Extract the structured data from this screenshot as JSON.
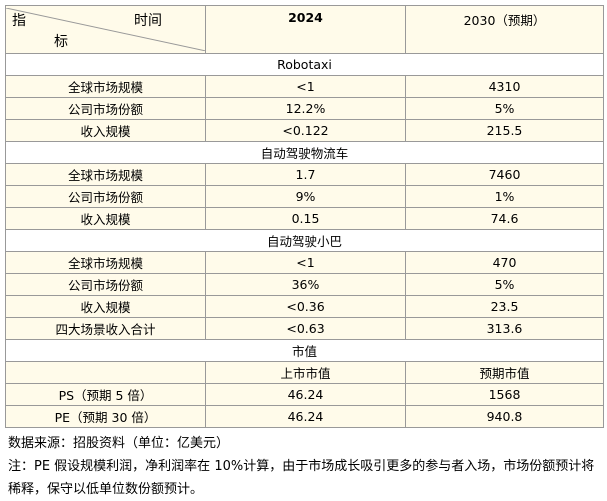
{
  "header": {
    "indicator_top": "指",
    "indicator_bottom": "标",
    "time": "时间",
    "col2": "2024",
    "col3": "2030（预期）"
  },
  "sections": [
    {
      "title": "Robotaxi",
      "rows": [
        [
          "全球市场规模",
          "<1",
          "4310"
        ],
        [
          "公司市场份额",
          "12.2%",
          "5%"
        ],
        [
          "收入规模",
          "<0.122",
          "215.5"
        ]
      ]
    },
    {
      "title": "自动驾驶物流车",
      "rows": [
        [
          "全球市场规模",
          "1.7",
          "7460"
        ],
        [
          "公司市场份额",
          "9%",
          "1%"
        ],
        [
          "收入规模",
          "0.15",
          "74.6"
        ]
      ]
    },
    {
      "title": "自动驾驶小巴",
      "rows": [
        [
          "全球市场规模",
          "<1",
          "470"
        ],
        [
          "公司市场份额",
          "36%",
          "5%"
        ],
        [
          "收入规模",
          "<0.36",
          "23.5"
        ],
        [
          "四大场景收入合计",
          "<0.63",
          "313.6"
        ]
      ]
    },
    {
      "title": "市值",
      "subheader": [
        "上市市值",
        "预期市值"
      ],
      "rows": [
        [
          "PS（预期 5 倍）",
          "46.24",
          "1568"
        ],
        [
          "PE（预期 30 倍）",
          "46.24",
          "940.8"
        ]
      ]
    }
  ],
  "notes": [
    "数据来源：招股资料（单位：亿美元）",
    "注：PE 假设规模利润，净利润率在 10%计算，由于市场成长吸引更多的参与者入场，市场份额预计将稀释，保守以低单位数份额预计。"
  ]
}
